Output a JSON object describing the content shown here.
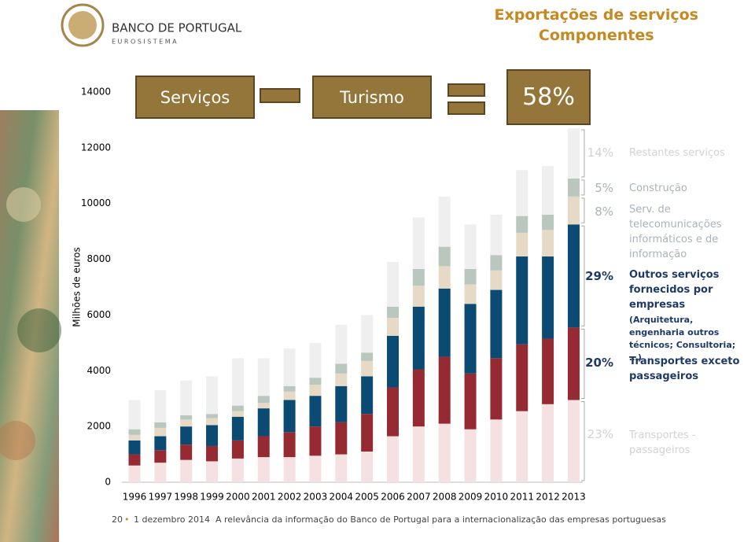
{
  "header": {
    "logo_name": "BANCO DE PORTUGAL",
    "logo_sub": "EUROSISTEMA",
    "title": "Exportações de serviços",
    "subtitle": "Componentes"
  },
  "equation": {
    "left": "Serviços",
    "middle": "Turismo",
    "result": "58%"
  },
  "chart_data": {
    "type": "stacked-bar",
    "y_label": "Milhões de euros",
    "categories": [
      "1996",
      "1997",
      "1998",
      "1999",
      "2000",
      "2001",
      "2002",
      "2003",
      "2004",
      "2005",
      "2006",
      "2007",
      "2008",
      "2009",
      "2010",
      "2011",
      "2012",
      "2013"
    ],
    "ylim": [
      0,
      14000
    ],
    "yticks": [
      0,
      2000,
      4000,
      6000,
      8000,
      10000,
      12000,
      14000
    ],
    "series": [
      {
        "name": "Transportes - passageiros",
        "share": "23%",
        "color": "#f6e1e2",
        "label_color": "#d2d2d2",
        "values": [
          600,
          700,
          800,
          750,
          850,
          900,
          900,
          950,
          1000,
          1100,
          1650,
          2000,
          2100,
          1900,
          2250,
          2550,
          2800,
          2950
        ]
      },
      {
        "name": "Transportes exceto passageiros",
        "share": "20%",
        "color": "#952a33",
        "label_color": "#1f3a68",
        "values": [
          400,
          450,
          550,
          550,
          650,
          750,
          900,
          1050,
          1150,
          1350,
          1750,
          2050,
          2400,
          2000,
          2200,
          2400,
          2350,
          2600
        ]
      },
      {
        "name": "Outros serviços fornecidos por empresas",
        "note": "(Arquitetura, engenharia outros técnicos; Consultoria; …)",
        "share": "29%",
        "color": "#0b4a72",
        "label_color": "#1f3a68",
        "values": [
          500,
          500,
          650,
          750,
          850,
          1000,
          1150,
          1100,
          1300,
          1350,
          1850,
          2250,
          2450,
          2500,
          2450,
          3150,
          2950,
          3700
        ]
      },
      {
        "name": "Serv. de telecomunicações informáticos e de informação",
        "share": "8%",
        "color": "#e6dac6",
        "label_color": "#a9b3bb",
        "values": [
          200,
          300,
          250,
          250,
          200,
          200,
          300,
          400,
          450,
          550,
          650,
          750,
          800,
          700,
          700,
          850,
          950,
          1000
        ]
      },
      {
        "name": "Construção",
        "share": "5%",
        "color": "#bac7bf",
        "label_color": "#a9b3bb",
        "values": [
          200,
          200,
          150,
          150,
          200,
          250,
          200,
          250,
          350,
          300,
          400,
          600,
          700,
          550,
          550,
          600,
          550,
          650
        ]
      },
      {
        "name": "Restantes serviços",
        "share": "14%",
        "color": "#efefef",
        "label_color": "#d2d2d2",
        "values": [
          1050,
          1150,
          1250,
          1350,
          1700,
          1350,
          1350,
          1250,
          1400,
          1350,
          1600,
          1850,
          1800,
          1600,
          1450,
          1650,
          1750,
          1800
        ]
      }
    ]
  },
  "footer": {
    "page": "20",
    "date": "1 dezembro 2014",
    "text": "A relevância da informação do Banco de Portugal para a internacionalização das empresas portuguesas"
  }
}
